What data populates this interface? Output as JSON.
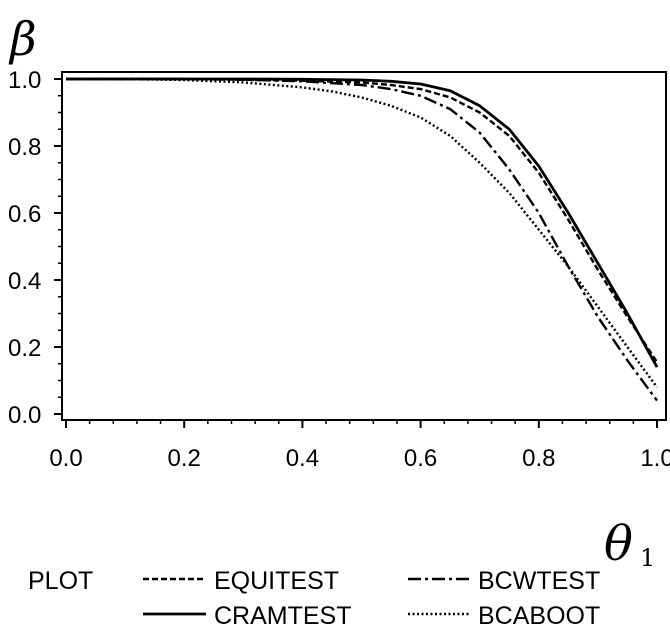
{
  "chart_data": {
    "type": "line",
    "ylabel_symbol": "β",
    "xlabel_symbol": "θ",
    "xlabel_subscript": "1",
    "xlim": [
      0.0,
      1.0
    ],
    "ylim": [
      0.0,
      1.0
    ],
    "x_ticks": [
      "0.0",
      "0.2",
      "0.4",
      "0.6",
      "0.8",
      "1.0"
    ],
    "y_ticks": [
      "0.0",
      "0.2",
      "0.4",
      "0.6",
      "0.8",
      "1.0"
    ],
    "legend_title": "PLOT",
    "legend_position": "bottom",
    "grid": false,
    "series": [
      {
        "name": "EQUITEST",
        "dash": "dashed",
        "x": [
          0.0,
          0.1,
          0.2,
          0.3,
          0.4,
          0.5,
          0.55,
          0.6,
          0.65,
          0.7,
          0.75,
          0.8,
          0.85,
          0.9,
          0.95,
          1.0
        ],
        "y": [
          1.0,
          1.0,
          1.0,
          0.998,
          0.995,
          0.99,
          0.982,
          0.97,
          0.945,
          0.9,
          0.83,
          0.72,
          0.58,
          0.43,
          0.29,
          0.155
        ]
      },
      {
        "name": "CRAMTEST",
        "dash": "solid",
        "x": [
          0.0,
          0.1,
          0.2,
          0.3,
          0.4,
          0.5,
          0.55,
          0.6,
          0.65,
          0.7,
          0.75,
          0.8,
          0.85,
          0.9,
          0.95,
          1.0
        ],
        "y": [
          1.0,
          1.0,
          1.0,
          1.0,
          0.999,
          0.997,
          0.993,
          0.985,
          0.965,
          0.92,
          0.85,
          0.74,
          0.6,
          0.45,
          0.3,
          0.14
        ]
      },
      {
        "name": "BCWTEST",
        "dash": "dashdot",
        "x": [
          0.0,
          0.1,
          0.2,
          0.3,
          0.4,
          0.5,
          0.55,
          0.6,
          0.65,
          0.7,
          0.75,
          0.8,
          0.85,
          0.9,
          0.95,
          1.0
        ],
        "y": [
          1.0,
          1.0,
          1.0,
          0.998,
          0.993,
          0.982,
          0.97,
          0.95,
          0.91,
          0.84,
          0.73,
          0.6,
          0.44,
          0.29,
          0.16,
          0.04
        ]
      },
      {
        "name": "BCABOOT",
        "dash": "dotted",
        "x": [
          0.0,
          0.1,
          0.2,
          0.3,
          0.4,
          0.45,
          0.5,
          0.55,
          0.6,
          0.65,
          0.7,
          0.75,
          0.8,
          0.85,
          0.9,
          0.95,
          1.0
        ],
        "y": [
          1.0,
          1.0,
          0.997,
          0.99,
          0.975,
          0.963,
          0.945,
          0.92,
          0.885,
          0.83,
          0.75,
          0.66,
          0.55,
          0.44,
          0.32,
          0.2,
          0.08
        ]
      }
    ]
  }
}
